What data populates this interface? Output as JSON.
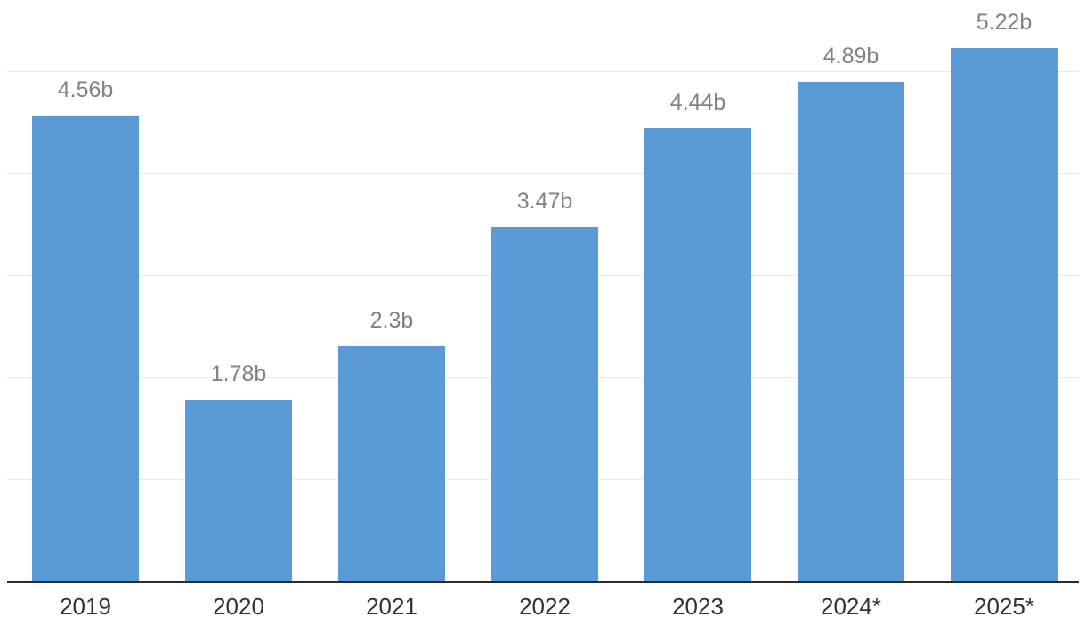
{
  "chart_data": {
    "type": "bar",
    "title": "",
    "xlabel": "",
    "ylabel": "",
    "categories": [
      "2019",
      "2020",
      "2021",
      "2022",
      "2023",
      "2024*",
      "2025*"
    ],
    "values": [
      4.56,
      1.78,
      2.3,
      3.47,
      4.44,
      4.89,
      5.22
    ],
    "value_labels": [
      "4.56b",
      "1.78b",
      "2.3b",
      "3.47b",
      "4.44b",
      "4.89b",
      "5.22b"
    ],
    "unit": "b",
    "ylim": [
      0,
      5.7
    ],
    "gridline_values": [
      1,
      2,
      3,
      4,
      5
    ],
    "grid": "horizontal-only, no y tick labels",
    "legend": "none",
    "colors": {
      "bar": "#5A9BD7",
      "value_label": "#828282",
      "year_label": "#333333",
      "gridline": "#e9e9e9",
      "axis_line": "#2b2b2b",
      "background": "#ffffff"
    }
  }
}
